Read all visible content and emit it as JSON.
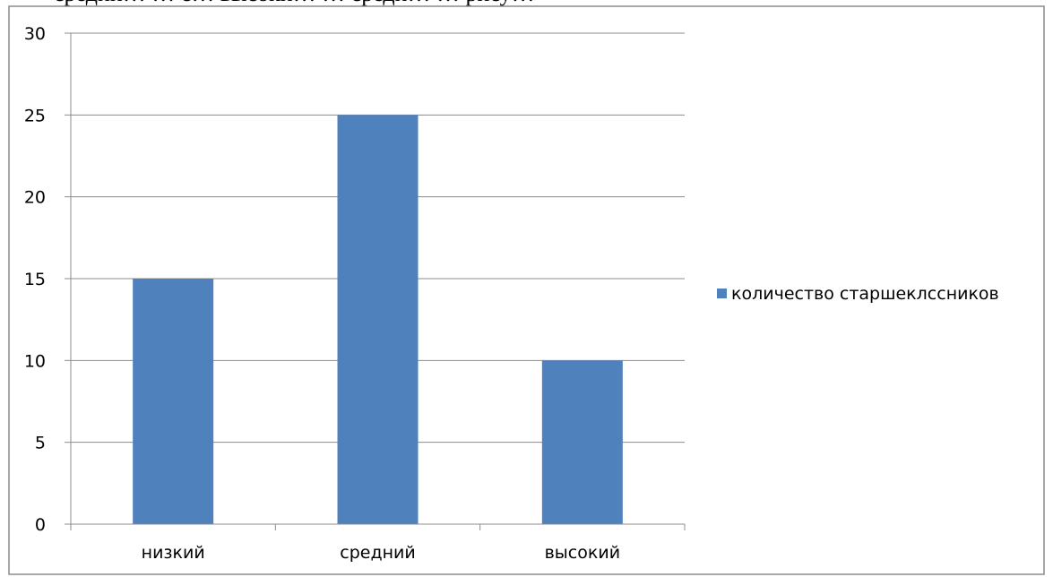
{
  "document": {
    "top_text": "средни… … с… высоки… … средн… … рису…"
  },
  "chart_data": {
    "type": "bar",
    "categories": [
      "низкий",
      "средний",
      "высокий"
    ],
    "series": [
      {
        "name": "количество старшеклссников",
        "color": "#4f81bd",
        "values": [
          15,
          25,
          10
        ]
      }
    ],
    "yticks": [
      "0",
      "5",
      "10",
      "15",
      "20",
      "25",
      "30"
    ],
    "ylim": [
      0,
      30
    ],
    "grid": true,
    "legend": "right",
    "title": "",
    "xlabel": "",
    "ylabel": ""
  }
}
